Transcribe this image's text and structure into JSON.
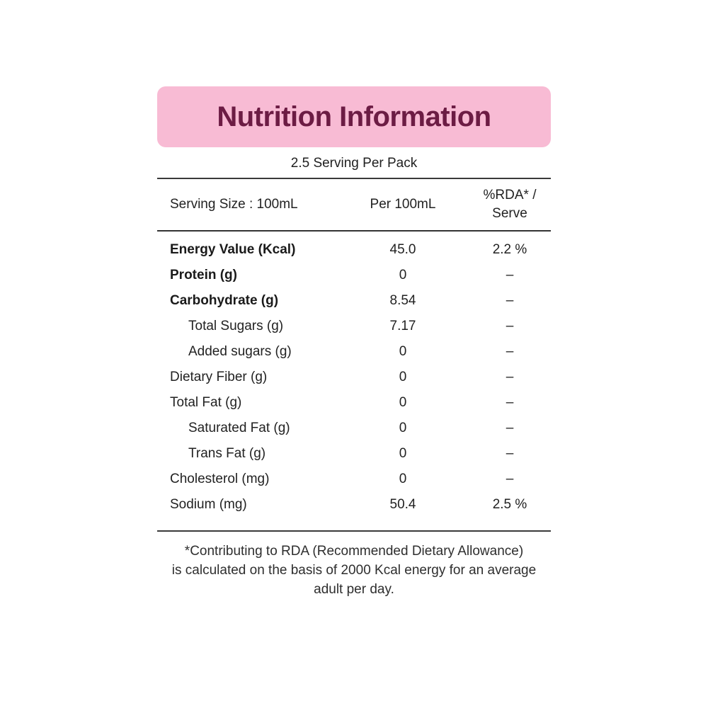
{
  "page": {
    "title": "Nutrition Information",
    "serving_note": "2.5 Serving Per Pack"
  },
  "colors": {
    "banner_background": "#F8BBD4",
    "title_text": "#6C1C44",
    "body_text": "#222222",
    "rule_line": "#3A3A3A"
  },
  "table": {
    "header": {
      "serving_size": "Serving Size : 100mL",
      "per_amount": "Per 100mL",
      "rda_line1": "%RDA* /",
      "rda_line2": "Serve"
    },
    "rows": [
      {
        "label": "Energy Value (Kcal)",
        "value": "45.0",
        "rda": "2.2 %"
      },
      {
        "label": "Protein (g)",
        "value": "0",
        "rda": "–"
      },
      {
        "label": "Carbohydrate (g)",
        "value": "8.54",
        "rda": "–"
      },
      {
        "label": "Total Sugars (g)",
        "value": "7.17",
        "rda": "–"
      },
      {
        "label": "Added sugars (g)",
        "value": "0",
        "rda": "–"
      },
      {
        "label": "Dietary Fiber (g)",
        "value": "0",
        "rda": "–"
      },
      {
        "label": "Total Fat (g)",
        "value": "0",
        "rda": "–"
      },
      {
        "label": "Saturated Fat (g)",
        "value": "0",
        "rda": "–"
      },
      {
        "label": "Trans Fat (g)",
        "value": "0",
        "rda": "–"
      },
      {
        "label": "Cholesterol (mg)",
        "value": "0",
        "rda": "–"
      },
      {
        "label": "Sodium (mg)",
        "value": "50.4",
        "rda": "2.5 %"
      }
    ]
  },
  "footnote": {
    "line1": "*Contributing to RDA (Recommended Dietary Allowance)",
    "line2": "is calculated on the basis of 2000 Kcal energy for an average",
    "line3": "adult per day."
  }
}
